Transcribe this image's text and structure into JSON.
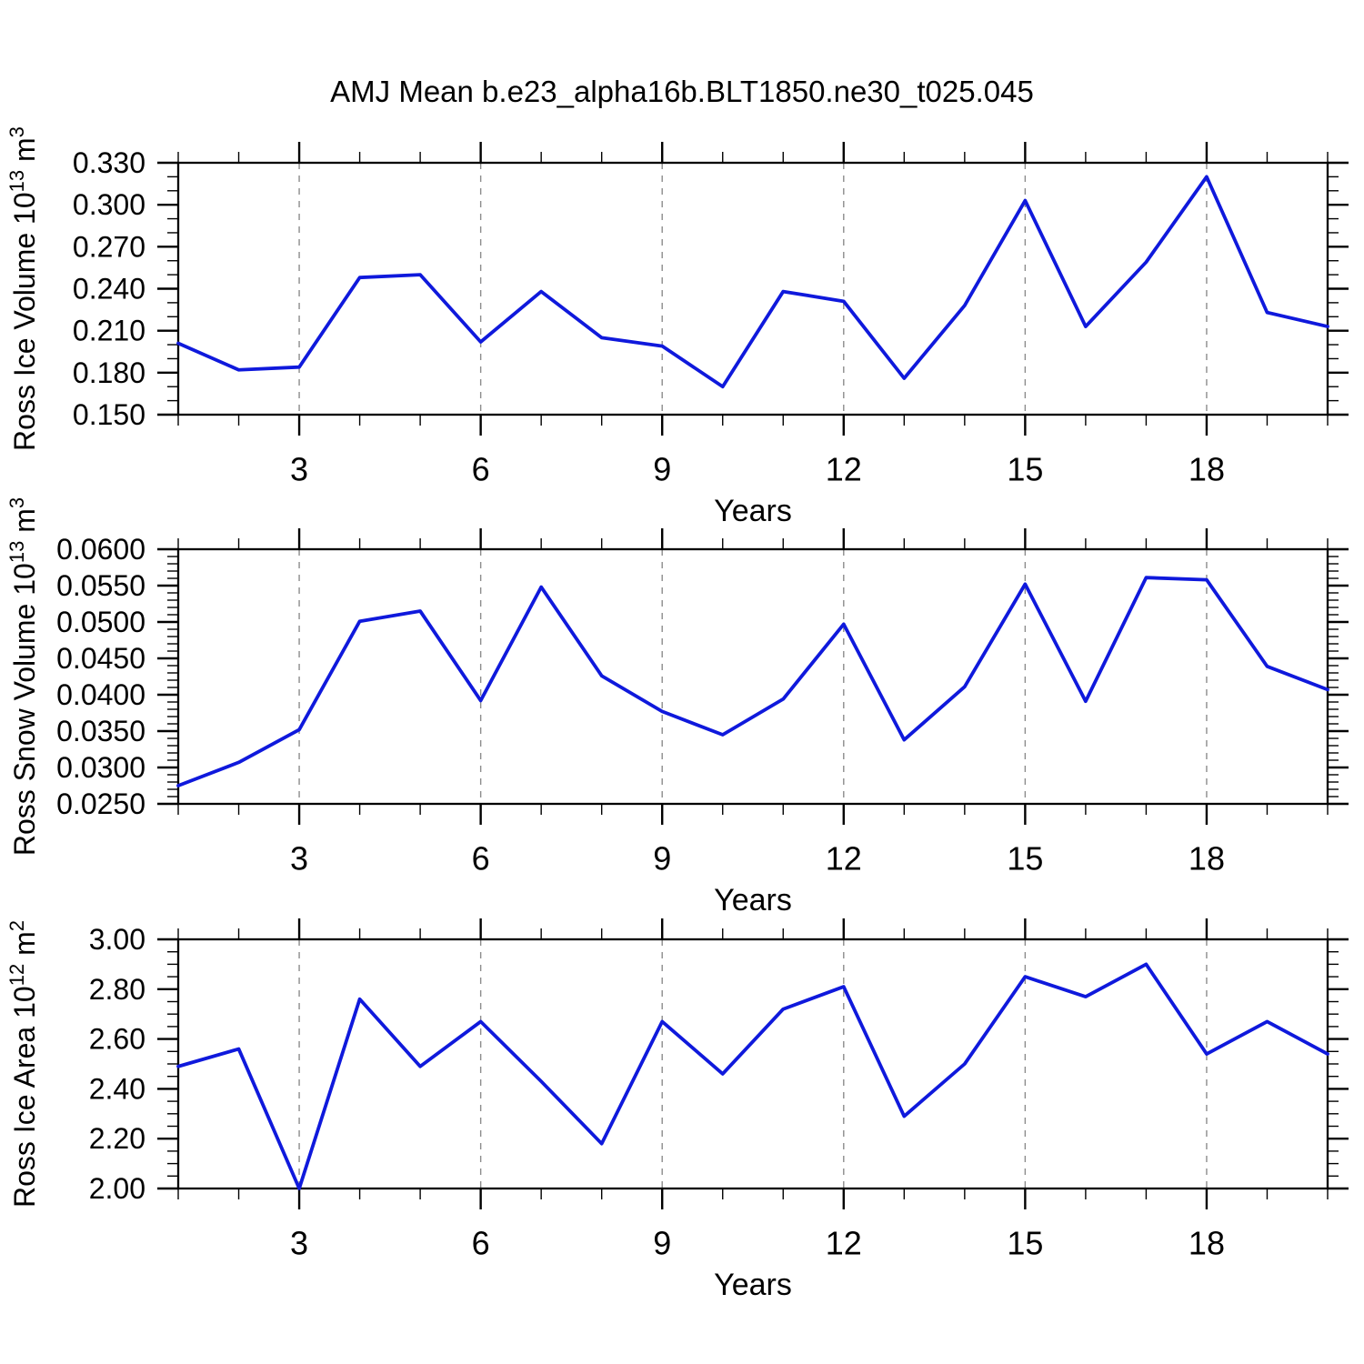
{
  "title": "AMJ Mean b.e23_alpha16b.BLT1850.ne30_t025.045",
  "colors": {
    "line": "#0f19dc",
    "axis": "#000000",
    "grid": "#8c8c8c",
    "text": "#000000",
    "background": "#ffffff"
  },
  "xaxis": {
    "label": "Years",
    "range": [
      1,
      20
    ],
    "major_ticks": [
      3,
      6,
      9,
      12,
      15,
      18
    ],
    "minor_step": 1,
    "grid": "dashed-vertical-at-major-ticks"
  },
  "chart_data": [
    {
      "type": "line",
      "name": "ross-ice-volume",
      "ylabel": "Ross Ice Volume 10^13 m^3",
      "ylabel_parts": [
        {
          "text": "Ross Ice Volume 10",
          "sup": false
        },
        {
          "text": "13",
          "sup": true
        },
        {
          "text": " m",
          "sup": false
        },
        {
          "text": "3",
          "sup": true
        }
      ],
      "xlabel": "Years",
      "ylim": [
        0.15,
        0.33
      ],
      "ytick_step": 0.03,
      "yminor_step": 0.01,
      "ytick_decimals": 3,
      "x": [
        1,
        2,
        3,
        4,
        5,
        6,
        7,
        8,
        9,
        10,
        11,
        12,
        13,
        14,
        15,
        16,
        17,
        18,
        19,
        20
      ],
      "values": [
        0.201,
        0.182,
        0.184,
        0.248,
        0.25,
        0.202,
        0.238,
        0.205,
        0.199,
        0.17,
        0.238,
        0.231,
        0.176,
        0.228,
        0.303,
        0.213,
        0.259,
        0.32,
        0.223,
        0.213
      ]
    },
    {
      "type": "line",
      "name": "ross-snow-volume",
      "ylabel": "Ross Snow Volume 10^13 m^3",
      "ylabel_parts": [
        {
          "text": "Ross Snow Volume 10",
          "sup": false
        },
        {
          "text": "13",
          "sup": true
        },
        {
          "text": " m",
          "sup": false
        },
        {
          "text": "3",
          "sup": true
        }
      ],
      "xlabel": "Years",
      "ylim": [
        0.025,
        0.06
      ],
      "ytick_step": 0.005,
      "yminor_step": 0.001,
      "ytick_decimals": 4,
      "x": [
        1,
        2,
        3,
        4,
        5,
        6,
        7,
        8,
        9,
        10,
        11,
        12,
        13,
        14,
        15,
        16,
        17,
        18,
        19,
        20
      ],
      "values": [
        0.0275,
        0.0307,
        0.0352,
        0.0501,
        0.0515,
        0.0392,
        0.0548,
        0.0426,
        0.0377,
        0.0345,
        0.0394,
        0.0497,
        0.0338,
        0.0411,
        0.0552,
        0.0391,
        0.0561,
        0.0558,
        0.0439,
        0.0407
      ]
    },
    {
      "type": "line",
      "name": "ross-ice-area",
      "ylabel": "Ross Ice Area 10^12 m^2",
      "ylabel_parts": [
        {
          "text": "Ross Ice Area 10",
          "sup": false
        },
        {
          "text": "12",
          "sup": true
        },
        {
          "text": " m",
          "sup": false
        },
        {
          "text": "2",
          "sup": true
        }
      ],
      "xlabel": "Years",
      "ylim": [
        2.0,
        3.0
      ],
      "ytick_step": 0.2,
      "yminor_step": 0.05,
      "ytick_decimals": 2,
      "x": [
        1,
        2,
        3,
        4,
        5,
        6,
        7,
        8,
        9,
        10,
        11,
        12,
        13,
        14,
        15,
        16,
        17,
        18,
        19,
        20
      ],
      "values": [
        2.49,
        2.56,
        2.0,
        2.76,
        2.49,
        2.67,
        2.43,
        2.18,
        2.67,
        2.46,
        2.72,
        2.81,
        2.29,
        2.5,
        2.85,
        2.77,
        2.9,
        2.54,
        2.67,
        2.54
      ]
    }
  ]
}
